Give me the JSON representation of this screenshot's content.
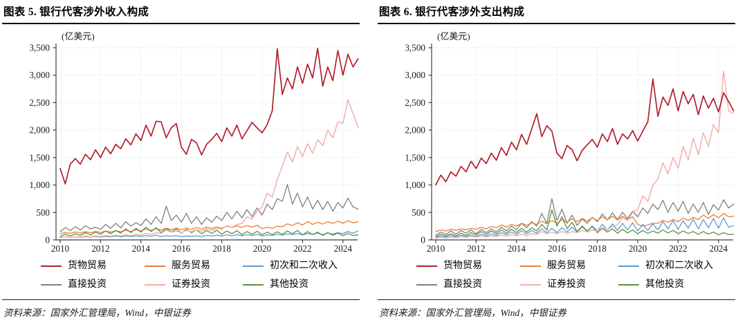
{
  "style_colors": {
    "axis": "#3f3f3f",
    "grid": "#d9d9d9",
    "tick_text": "#1a1a1a"
  },
  "chart_data": [
    {
      "type": "line",
      "title": "图表 5. 银行代客涉外收入构成",
      "unit_label": "(亿美元)",
      "source": "资料来源：国家外汇管理局，Wind，中银证券",
      "x_start": 2010,
      "x_step_years": 0.25,
      "x_ticks": [
        2010,
        2012,
        2014,
        2016,
        2018,
        2020,
        2022,
        2024
      ],
      "y_ticks": [
        0,
        500,
        1000,
        1500,
        2000,
        2500,
        3000,
        3500
      ],
      "y_tick_labels": [
        "0",
        "500",
        "1,000",
        "1,500",
        "2,000",
        "2,500",
        "3,000",
        "3,500"
      ],
      "ylim": [
        0,
        3500
      ],
      "grid": "dotted-both",
      "legend_position": "bottom",
      "series": [
        {
          "name": "货物贸易",
          "color": "#B01E2C",
          "values": [
            1300,
            1020,
            1380,
            1480,
            1380,
            1560,
            1460,
            1640,
            1500,
            1690,
            1570,
            1740,
            1660,
            1840,
            1730,
            1930,
            1810,
            2090,
            1890,
            2160,
            2150,
            1860,
            2040,
            2120,
            1690,
            1560,
            1830,
            1770,
            1550,
            1740,
            1830,
            1940,
            1790,
            2040,
            1890,
            2090,
            1840,
            1990,
            2140,
            2040,
            1950,
            2100,
            2350,
            3480,
            2650,
            2950,
            2750,
            3150,
            2850,
            3200,
            2950,
            3490,
            2800,
            3150,
            2900,
            3450,
            3000,
            3380,
            3150,
            3300
          ]
        },
        {
          "name": "服务贸易",
          "color": "#ED7D31",
          "values": [
            110,
            135,
            120,
            145,
            125,
            150,
            130,
            155,
            135,
            160,
            140,
            165,
            150,
            175,
            155,
            185,
            165,
            195,
            175,
            205,
            180,
            210,
            188,
            215,
            185,
            218,
            192,
            222,
            198,
            232,
            206,
            238,
            212,
            252,
            222,
            258,
            228,
            262,
            232,
            268,
            205,
            232,
            212,
            248,
            242,
            292,
            262,
            312,
            272,
            332,
            282,
            322,
            288,
            332,
            298,
            342,
            302,
            348,
            312,
            330
          ]
        },
        {
          "name": "初次和二次收入",
          "color": "#5B9BD5",
          "values": [
            42,
            56,
            46,
            60,
            46,
            61,
            50,
            66,
            50,
            66,
            55,
            70,
            56,
            71,
            60,
            76,
            60,
            80,
            66,
            86,
            62,
            76,
            66,
            82,
            56,
            72,
            62,
            76,
            62,
            82,
            70,
            86,
            70,
            92,
            76,
            96,
            76,
            96,
            82,
            102,
            72,
            92,
            82,
            102,
            86,
            112,
            96,
            116,
            92,
            116,
            102,
            122,
            96,
            126,
            106,
            132,
            112,
            152,
            122,
            162
          ]
        },
        {
          "name": "直接投资",
          "color": "#7F7F7F",
          "values": [
            150,
            225,
            170,
            240,
            180,
            258,
            200,
            232,
            192,
            282,
            212,
            302,
            222,
            332,
            252,
            312,
            262,
            382,
            282,
            422,
            302,
            612,
            352,
            452,
            322,
            482,
            302,
            422,
            282,
            402,
            322,
            432,
            352,
            502,
            382,
            522,
            402,
            552,
            422,
            582,
            452,
            652,
            552,
            752,
            702,
            1010,
            652,
            852,
            602,
            782,
            562,
            722,
            552,
            702,
            522,
            682,
            582,
            762,
            602,
            560
          ]
        },
        {
          "name": "证券投资",
          "color": "#F0AFAD",
          "values": [
            40,
            56,
            45,
            60,
            50,
            70,
            55,
            75,
            60,
            80,
            66,
            86,
            70,
            96,
            76,
            100,
            90,
            120,
            100,
            130,
            120,
            180,
            140,
            162,
            132,
            172,
            150,
            182,
            162,
            202,
            172,
            212,
            192,
            262,
            222,
            282,
            300,
            420,
            380,
            520,
            600,
            850,
            780,
            1100,
            1350,
            1600,
            1420,
            1700,
            1520,
            1750,
            1580,
            1820,
            1720,
            2000,
            1860,
            2150,
            2120,
            2550,
            2300,
            2050
          ]
        },
        {
          "name": "其他投资",
          "color": "#5E8F3E",
          "values": [
            62,
            102,
            72,
            112,
            82,
            132,
            92,
            142,
            102,
            162,
            112,
            172,
            122,
            202,
            132,
            212,
            142,
            232,
            152,
            222,
            132,
            212,
            142,
            202,
            122,
            192,
            132,
            182,
            112,
            172,
            117,
            177,
            102,
            162,
            112,
            167,
            97,
            152,
            102,
            157,
            92,
            142,
            97,
            147,
            102,
            162,
            112,
            172,
            92,
            152,
            97,
            142,
            82,
            132,
            87,
            122,
            77,
            117,
            82,
            92
          ]
        }
      ]
    },
    {
      "type": "line",
      "title": "图表 6. 银行代客涉外支出构成",
      "unit_label": "(亿美元)",
      "source": "资料来源：国家外汇管理局，Wind，中银证券",
      "x_start": 2010,
      "x_step_years": 0.25,
      "x_ticks": [
        2010,
        2012,
        2014,
        2016,
        2018,
        2020,
        2022,
        2024
      ],
      "y_ticks": [
        0,
        500,
        1000,
        1500,
        2000,
        2500,
        3000,
        3500
      ],
      "y_tick_labels": [
        "0",
        "500",
        "1,000",
        "1,500",
        "2,000",
        "2,500",
        "3,000",
        "3,500"
      ],
      "ylim": [
        0,
        3500
      ],
      "grid": "dotted-both",
      "legend_position": "bottom",
      "series": [
        {
          "name": "货物贸易",
          "color": "#B01E2C",
          "values": [
            1000,
            1180,
            1060,
            1240,
            1160,
            1340,
            1240,
            1430,
            1300,
            1490,
            1390,
            1580,
            1450,
            1680,
            1540,
            1780,
            1640,
            1920,
            1740,
            2020,
            2300,
            1880,
            2080,
            1980,
            1580,
            1480,
            1720,
            1640,
            1440,
            1630,
            1730,
            1830,
            1690,
            1930,
            1790,
            2030,
            1740,
            1930,
            1840,
            1990,
            1800,
            1980,
            2150,
            2930,
            2250,
            2600,
            2450,
            2750,
            2350,
            2700,
            2480,
            2650,
            2280,
            2620,
            2400,
            2580,
            2330,
            2680,
            2520,
            2350
          ]
        },
        {
          "name": "服务贸易",
          "color": "#ED7D31",
          "values": [
            150,
            182,
            162,
            192,
            172,
            202,
            182,
            212,
            192,
            232,
            202,
            242,
            222,
            272,
            236,
            282,
            252,
            302,
            266,
            312,
            282,
            342,
            296,
            352,
            302,
            372,
            322,
            382,
            332,
            392,
            342,
            402,
            352,
            422,
            366,
            432,
            362,
            432,
            372,
            422,
            282,
            252,
            272,
            302,
            302,
            352,
            322,
            372,
            332,
            402,
            352,
            412,
            372,
            452,
            392,
            462,
            402,
            482,
            422,
            432
          ]
        },
        {
          "name": "初次和二次收入",
          "color": "#5B9BD5",
          "values": [
            42,
            72,
            52,
            82,
            52,
            87,
            62,
            92,
            62,
            102,
            72,
            112,
            82,
            132,
            92,
            142,
            102,
            162,
            112,
            172,
            122,
            202,
            132,
            212,
            132,
            222,
            142,
            232,
            142,
            242,
            152,
            252,
            162,
            282,
            172,
            292,
            172,
            302,
            182,
            312,
            162,
            282,
            172,
            292,
            182,
            332,
            202,
            352,
            192,
            352,
            212,
            382,
            202,
            372,
            222,
            392,
            212,
            402,
            232,
            262
          ]
        },
        {
          "name": "直接投资",
          "color": "#7F7F7F",
          "values": [
            82,
            142,
            102,
            162,
            102,
            172,
            122,
            182,
            112,
            192,
            132,
            202,
            142,
            232,
            162,
            252,
            182,
            302,
            222,
            332,
            252,
            482,
            302,
            752,
            352,
            562,
            302,
            452,
            262,
            382,
            302,
            412,
            332,
            472,
            362,
            492,
            372,
            502,
            392,
            522,
            422,
            582,
            482,
            652,
            552,
            722,
            502,
            682,
            522,
            702,
            482,
            652,
            502,
            682,
            462,
            642,
            542,
            732,
            582,
            652
          ]
        },
        {
          "name": "证券投资",
          "color": "#F0AFAD",
          "values": [
            32,
            46,
            36,
            52,
            42,
            62,
            46,
            66,
            52,
            72,
            56,
            76,
            62,
            86,
            66,
            92,
            76,
            102,
            82,
            112,
            102,
            152,
            112,
            142,
            112,
            152,
            117,
            152,
            132,
            172,
            142,
            182,
            162,
            222,
            182,
            242,
            282,
            402,
            352,
            502,
            552,
            802,
            702,
            1002,
            1102,
            1402,
            1202,
            1502,
            1302,
            1702,
            1452,
            1852,
            1552,
            1952,
            1702,
            2102,
            1950,
            3080,
            2350,
            2300
          ]
        },
        {
          "name": "其他投资",
          "color": "#5E8F3E",
          "values": [
            62,
            102,
            72,
            112,
            72,
            122,
            82,
            132,
            92,
            152,
            102,
            162,
            112,
            182,
            122,
            192,
            132,
            212,
            142,
            222,
            162,
            282,
            182,
            552,
            252,
            422,
            202,
            322,
            152,
            252,
            162,
            242,
            132,
            212,
            142,
            202,
            122,
            192,
            127,
            182,
            112,
            172,
            117,
            162,
            122,
            182,
            127,
            172,
            112,
            162,
            117,
            152,
            102,
            152,
            107,
            142,
            92,
            132,
            97,
            102
          ]
        }
      ]
    }
  ]
}
